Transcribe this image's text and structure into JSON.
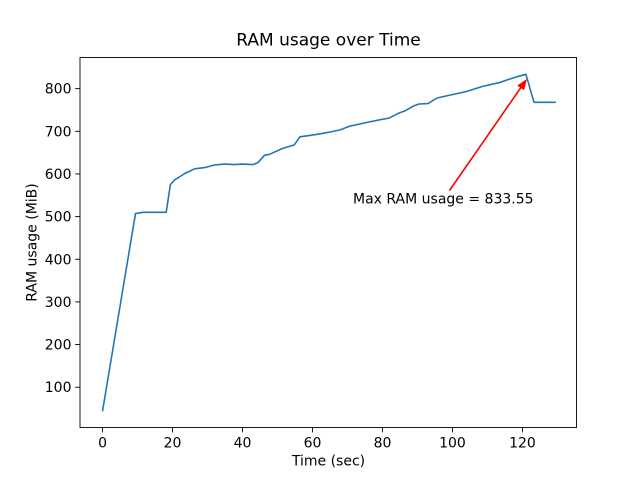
{
  "colors": {
    "line": "#1f77b4",
    "annotation": "#ff0000",
    "axis": "#000000",
    "background": "#ffffff"
  },
  "chart_data": {
    "type": "line",
    "title": "RAM usage over Time",
    "xlabel": "Time (sec)",
    "ylabel": "RAM usage (MiB)",
    "grid": false,
    "legend": null,
    "xticks": [
      0,
      20,
      40,
      60,
      80,
      100,
      120
    ],
    "yticks": [
      100,
      200,
      300,
      400,
      500,
      600,
      700,
      800
    ],
    "xlim": [
      -6.45,
      135.45
    ],
    "ylim": [
      5.6,
      873.0
    ],
    "max_ram_mib": 833.55,
    "annotation": {
      "text": "Max RAM usage = 833.55",
      "xy": [
        121,
        833.55
      ]
    },
    "series": [
      {
        "name": "RAM usage (MiB)",
        "color": "#1f77b4",
        "points": [
          [
            0,
            45
          ],
          [
            9.4,
            507
          ],
          [
            11.5,
            510
          ],
          [
            18.2,
            510
          ],
          [
            19.4,
            575
          ],
          [
            20.6,
            586
          ],
          [
            23.5,
            601
          ],
          [
            26.3,
            612
          ],
          [
            29.2,
            615
          ],
          [
            32,
            621
          ],
          [
            34.9,
            623
          ],
          [
            37.5,
            622
          ],
          [
            40,
            623
          ],
          [
            42.9,
            622
          ],
          [
            44.3,
            626
          ],
          [
            46.3,
            644
          ],
          [
            47.7,
            646
          ],
          [
            51.5,
            660
          ],
          [
            54.8,
            668
          ],
          [
            56.4,
            687
          ],
          [
            59,
            690
          ],
          [
            62,
            694
          ],
          [
            64.9,
            698
          ],
          [
            67.8,
            703
          ],
          [
            70.6,
            712
          ],
          [
            73.5,
            717
          ],
          [
            76.3,
            722
          ],
          [
            79.2,
            727
          ],
          [
            81.9,
            731
          ],
          [
            84.5,
            742
          ],
          [
            86.5,
            748
          ],
          [
            89,
            760
          ],
          [
            90.5,
            764
          ],
          [
            93,
            765
          ],
          [
            95.6,
            778
          ],
          [
            99.9,
            786
          ],
          [
            103.9,
            793
          ],
          [
            108.5,
            805
          ],
          [
            113.3,
            814
          ],
          [
            116.2,
            822
          ],
          [
            118.5,
            828
          ],
          [
            121,
            833.55
          ],
          [
            123.3,
            768
          ],
          [
            129.4,
            768
          ]
        ]
      }
    ]
  }
}
